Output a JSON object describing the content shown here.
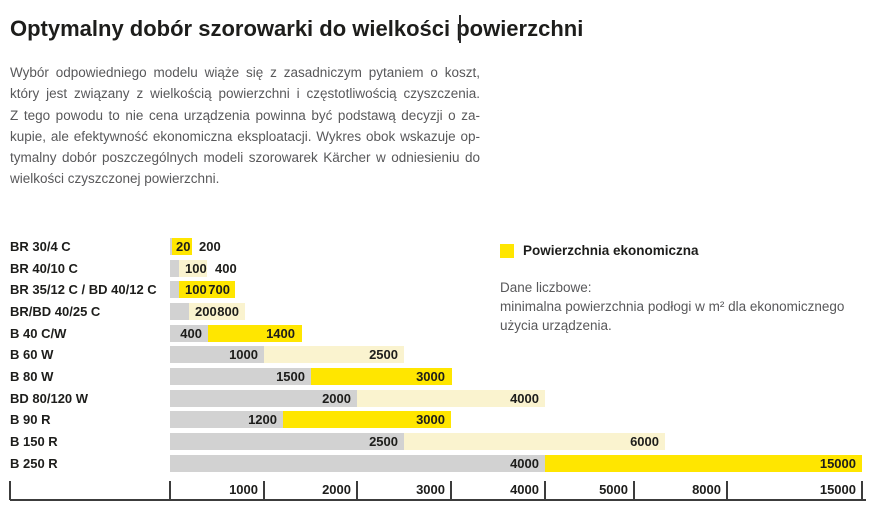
{
  "page": {
    "title": "Optymalny dobór szorowarki do wielkości powierzchni"
  },
  "intro": {
    "lines": [
      "Wybór odpowiedniego modelu wiąże się z zasadniczym pytaniem o koszt,",
      "który jest związany z wielkością powierzchni i częstotliwością czyszczenia.",
      "Z tego powodu to nie cena urządzenia powinna być podstawą decyzji o za-",
      "kupie, ale efektywność ekonomiczna eksploatacji. Wykres obok wskazuje op-",
      "tymalny dobór poszczególnych modeli szorowarek Kärcher w odniesieniu do",
      "wielkości czyszczonej powierzchni."
    ]
  },
  "legend": {
    "label": "Powierzchnia ekonomiczna",
    "swatch_color": "#FFE600"
  },
  "note": {
    "heading": "Dane liczbowe:",
    "lines": [
      "minimalna powierzchnia podłogi w m² dla ekonomicznego",
      "użycia urządzenia."
    ]
  },
  "chart_data": {
    "type": "bar",
    "orientation": "horizontal",
    "unit": "m²",
    "description": "Range bars: gray segment spans 0 to minimum economic floor area; yellow/cream segment spans minimum to maximum economic floor area per scrubber model.",
    "rows": [
      {
        "label": "BR 30/4 C",
        "min": 20,
        "max": 200,
        "tone": "yellow"
      },
      {
        "label": "BR 40/10 C",
        "min": 100,
        "max": 400,
        "tone": "cream"
      },
      {
        "label": "BR 35/12 C / BD 40/12 C",
        "min": 100,
        "max": 700,
        "tone": "yellow"
      },
      {
        "label": "BR/BD 40/25 C",
        "min": 200,
        "max": 800,
        "tone": "cream"
      },
      {
        "label": "B 40 C/W",
        "min": 400,
        "max": 1400,
        "tone": "yellow"
      },
      {
        "label": "B 60 W",
        "min": 1000,
        "max": 2500,
        "tone": "cream"
      },
      {
        "label": "B 80 W",
        "min": 1500,
        "max": 3000,
        "tone": "yellow"
      },
      {
        "label": "BD 80/120 W",
        "min": 2000,
        "max": 4000,
        "tone": "cream"
      },
      {
        "label": "B 90 R",
        "min": 1200,
        "max": 3000,
        "tone": "yellow"
      },
      {
        "label": "B 150 R",
        "min": 2500,
        "max": 6000,
        "tone": "cream"
      },
      {
        "label": "B 250 R",
        "min": 4000,
        "max": 15000,
        "tone": "yellow"
      }
    ],
    "x_axis": {
      "tick_labels": [
        "1000",
        "2000",
        "3000",
        "4000",
        "5000",
        "8000",
        "15000"
      ],
      "range": [
        0,
        15000
      ],
      "scale": "piecewise (compressed above 5000)"
    },
    "colors": {
      "economic_yellow": "#FFE600",
      "economic_cream": "#FAF3CF",
      "base_gray": "#D2D2D2",
      "axis": "#3c3c3c",
      "text_dark": "#1d1d1b",
      "text_gray": "#58585a"
    }
  }
}
